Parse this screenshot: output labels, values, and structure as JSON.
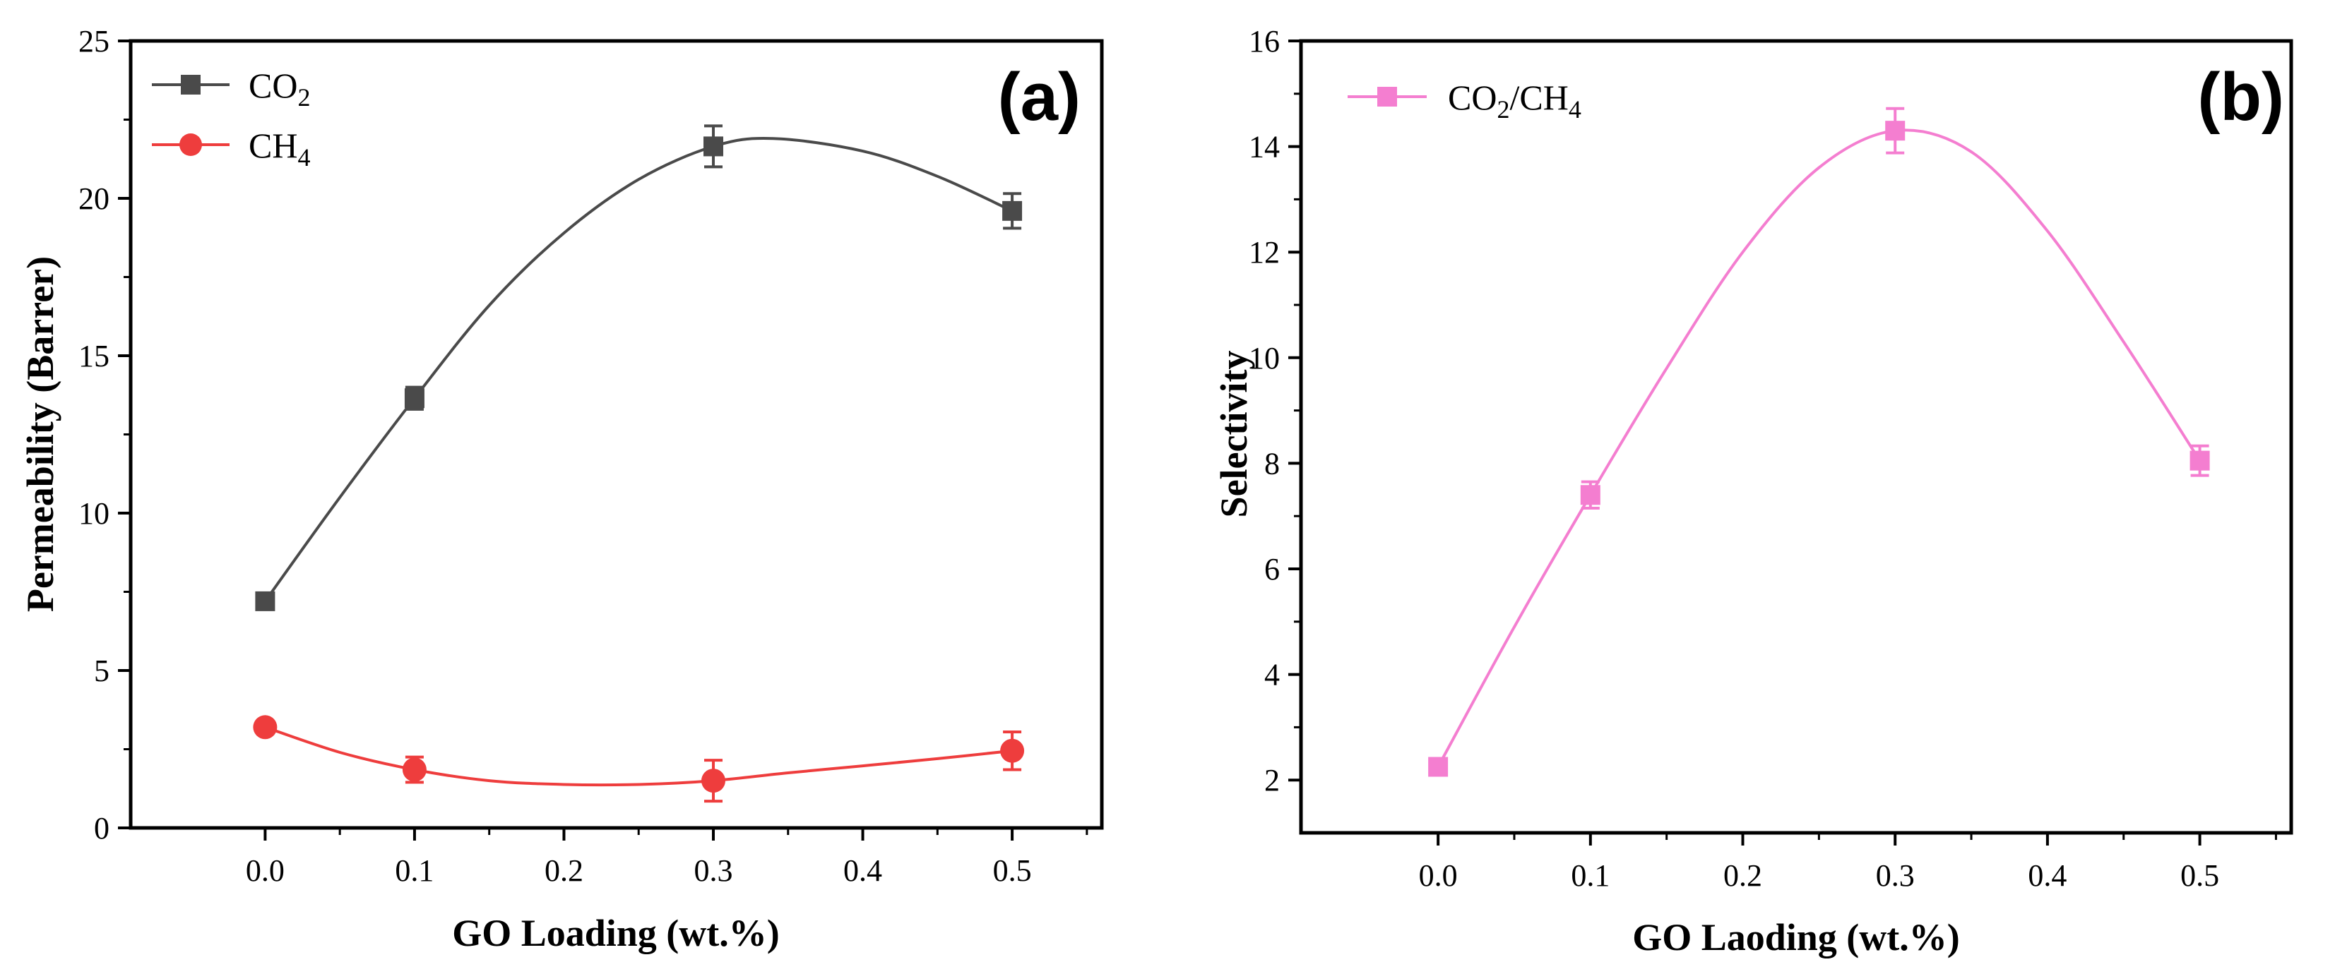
{
  "chart_data": [
    {
      "id": "a",
      "type": "line",
      "panel_label": "(a)",
      "xlabel": "GO Loading (wt.%)",
      "ylabel": "Permeability (Barrer)",
      "xlim": [
        -0.09,
        0.56
      ],
      "ylim": [
        0,
        25
      ],
      "xticks": [
        "0.0",
        "0.1",
        "0.2",
        "0.3",
        "0.4",
        "0.5"
      ],
      "yticks": [
        "0",
        "5",
        "10",
        "15",
        "20",
        "25"
      ],
      "legend_position": "top-left",
      "series": [
        {
          "name_main": "CO",
          "name_sub": "2",
          "color": "#4a4a4a",
          "marker": "square",
          "x": [
            0.0,
            0.1,
            0.3,
            0.5
          ],
          "y": [
            7.2,
            13.65,
            21.65,
            19.6
          ],
          "err": [
            0.15,
            0.35,
            0.65,
            0.55
          ],
          "curve_x": [
            0.0,
            0.05,
            0.1,
            0.15,
            0.2,
            0.25,
            0.3,
            0.34,
            0.4,
            0.45,
            0.5
          ],
          "curve_y": [
            7.2,
            10.5,
            13.65,
            16.6,
            18.9,
            20.6,
            21.65,
            21.9,
            21.5,
            20.7,
            19.6
          ]
        },
        {
          "name_main": "CH",
          "name_sub": "4",
          "color": "#ee3d3d",
          "marker": "circle",
          "x": [
            0.0,
            0.1,
            0.3,
            0.5
          ],
          "y": [
            3.2,
            1.85,
            1.5,
            2.45
          ],
          "err": [
            0.2,
            0.4,
            0.65,
            0.6
          ],
          "curve_x": [
            0.0,
            0.05,
            0.1,
            0.15,
            0.2,
            0.25,
            0.3,
            0.35,
            0.4,
            0.45,
            0.5
          ],
          "curve_y": [
            3.2,
            2.4,
            1.85,
            1.5,
            1.38,
            1.38,
            1.5,
            1.75,
            1.97,
            2.2,
            2.45
          ]
        }
      ]
    },
    {
      "id": "b",
      "type": "line",
      "panel_label": "(b)",
      "xlabel": "GO Laoding (wt.%)",
      "ylabel": "Selectivity",
      "xlim": [
        -0.09,
        0.56
      ],
      "ylim": [
        1,
        16
      ],
      "xticks": [
        "0.0",
        "0.1",
        "0.2",
        "0.3",
        "0.4",
        "0.5"
      ],
      "yticks": [
        "2",
        "4",
        "6",
        "8",
        "10",
        "12",
        "14",
        "16"
      ],
      "legend_position": "top-left",
      "series": [
        {
          "name_main": "CO",
          "name_sub": "2",
          "name_mid": "/CH",
          "name_sub2": "4",
          "color": "#f47ed0",
          "marker": "square",
          "x": [
            0.0,
            0.1,
            0.3,
            0.5
          ],
          "y": [
            2.25,
            7.4,
            14.3,
            8.05
          ],
          "err": [
            0.1,
            0.25,
            0.42,
            0.28
          ],
          "curve_x": [
            0.0,
            0.05,
            0.1,
            0.15,
            0.2,
            0.25,
            0.3,
            0.35,
            0.4,
            0.45,
            0.5
          ],
          "curve_y": [
            2.25,
            4.9,
            7.4,
            9.8,
            12.0,
            13.6,
            14.3,
            13.9,
            12.4,
            10.3,
            8.05
          ]
        }
      ]
    }
  ]
}
